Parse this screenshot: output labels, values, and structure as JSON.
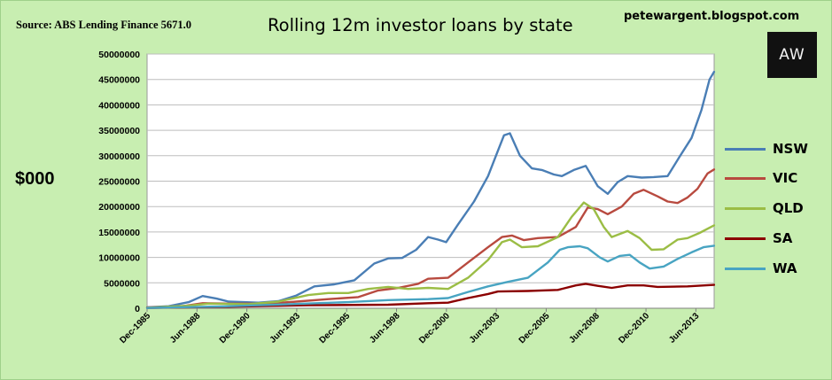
{
  "header": {
    "source": "Source: ABS Lending Finance 5671.0",
    "title": "Rolling 12m investor loans by state",
    "blog": "petewargent.blogspot.com",
    "logo_text": "AW"
  },
  "colors": {
    "background": "#c8eeb1",
    "plot_area": "#ffffff",
    "gridline": "#bdbdbd",
    "NSW": "#4a7eb5",
    "VIC": "#b84a3f",
    "QLD": "#9bbd45",
    "SA": "#8b0000",
    "WA": "#48a4c2"
  },
  "chart_data": {
    "type": "line",
    "title": "Rolling 12m investor loans by state",
    "ylabel": "$000",
    "ylim": [
      0,
      50000000
    ],
    "yticks": [
      0,
      5000000,
      10000000,
      15000000,
      20000000,
      25000000,
      30000000,
      35000000,
      40000000,
      45000000,
      50000000
    ],
    "xlim": [
      1985.917,
      2014.333
    ],
    "x_tick_labels": [
      {
        "label": "Dec-1985",
        "x": 1985.917
      },
      {
        "label": "Jun-1988",
        "x": 1988.417
      },
      {
        "label": "Dec-1990",
        "x": 1990.917
      },
      {
        "label": "Jun-1993",
        "x": 1993.417
      },
      {
        "label": "Dec-1995",
        "x": 1995.917
      },
      {
        "label": "Jun-1998",
        "x": 1998.417
      },
      {
        "label": "Dec-2000",
        "x": 2000.917
      },
      {
        "label": "Jun-2003",
        "x": 2003.417
      },
      {
        "label": "Dec-2005",
        "x": 2005.917
      },
      {
        "label": "Jun-2008",
        "x": 2008.417
      },
      {
        "label": "Dec-2010",
        "x": 2010.917
      },
      {
        "label": "Jun-2013",
        "x": 2013.417
      }
    ],
    "grid": true,
    "legend_position": "right",
    "series": [
      {
        "name": "NSW",
        "points": [
          [
            1985.92,
            200000
          ],
          [
            1987.0,
            400000
          ],
          [
            1988.0,
            1200000
          ],
          [
            1988.7,
            2400000
          ],
          [
            1989.4,
            1900000
          ],
          [
            1990.0,
            1300000
          ],
          [
            1991.5,
            1100000
          ],
          [
            1992.5,
            1400000
          ],
          [
            1993.4,
            2500000
          ],
          [
            1994.3,
            4300000
          ],
          [
            1995.3,
            4700000
          ],
          [
            1996.3,
            5500000
          ],
          [
            1997.3,
            8800000
          ],
          [
            1998.0,
            9800000
          ],
          [
            1998.7,
            9900000
          ],
          [
            1999.4,
            11500000
          ],
          [
            2000.0,
            14000000
          ],
          [
            2000.5,
            13500000
          ],
          [
            2000.9,
            13000000
          ],
          [
            2001.5,
            16500000
          ],
          [
            2002.3,
            21000000
          ],
          [
            2003.0,
            26000000
          ],
          [
            2003.5,
            31000000
          ],
          [
            2003.8,
            34000000
          ],
          [
            2004.1,
            34400000
          ],
          [
            2004.6,
            30000000
          ],
          [
            2005.2,
            27500000
          ],
          [
            2005.7,
            27200000
          ],
          [
            2006.3,
            26300000
          ],
          [
            2006.7,
            26000000
          ],
          [
            2007.3,
            27200000
          ],
          [
            2007.9,
            28000000
          ],
          [
            2008.5,
            24000000
          ],
          [
            2009.0,
            22500000
          ],
          [
            2009.5,
            24800000
          ],
          [
            2010.0,
            26000000
          ],
          [
            2010.7,
            25700000
          ],
          [
            2011.3,
            25800000
          ],
          [
            2012.0,
            26000000
          ],
          [
            2012.6,
            29800000
          ],
          [
            2013.2,
            33500000
          ],
          [
            2013.7,
            39000000
          ],
          [
            2014.1,
            45000000
          ],
          [
            2014.33,
            46500000
          ]
        ]
      },
      {
        "name": "VIC",
        "points": [
          [
            1985.92,
            150000
          ],
          [
            1987.5,
            300000
          ],
          [
            1988.7,
            1000000
          ],
          [
            1990.0,
            900000
          ],
          [
            1992.0,
            900000
          ],
          [
            1993.4,
            1300000
          ],
          [
            1995.0,
            1800000
          ],
          [
            1996.5,
            2200000
          ],
          [
            1997.5,
            3500000
          ],
          [
            1998.5,
            4000000
          ],
          [
            1999.5,
            4800000
          ],
          [
            2000.0,
            5800000
          ],
          [
            2001.0,
            6000000
          ],
          [
            2002.0,
            9000000
          ],
          [
            2003.0,
            12000000
          ],
          [
            2003.7,
            14000000
          ],
          [
            2004.2,
            14300000
          ],
          [
            2004.8,
            13400000
          ],
          [
            2005.5,
            13800000
          ],
          [
            2006.5,
            14000000
          ],
          [
            2007.4,
            16000000
          ],
          [
            2008.0,
            19800000
          ],
          [
            2008.5,
            19500000
          ],
          [
            2009.0,
            18500000
          ],
          [
            2009.7,
            20000000
          ],
          [
            2010.3,
            22500000
          ],
          [
            2010.8,
            23300000
          ],
          [
            2011.5,
            22000000
          ],
          [
            2012.0,
            21000000
          ],
          [
            2012.5,
            20700000
          ],
          [
            2013.0,
            21800000
          ],
          [
            2013.5,
            23500000
          ],
          [
            2014.0,
            26500000
          ],
          [
            2014.33,
            27300000
          ]
        ]
      },
      {
        "name": "QLD",
        "points": [
          [
            1985.92,
            100000
          ],
          [
            1988.0,
            500000
          ],
          [
            1989.0,
            900000
          ],
          [
            1991.0,
            800000
          ],
          [
            1992.5,
            1300000
          ],
          [
            1994.0,
            2600000
          ],
          [
            1995.0,
            3000000
          ],
          [
            1996.0,
            3000000
          ],
          [
            1997.0,
            3800000
          ],
          [
            1998.0,
            4200000
          ],
          [
            1999.0,
            3800000
          ],
          [
            2000.0,
            4000000
          ],
          [
            2001.0,
            3800000
          ],
          [
            2002.0,
            6000000
          ],
          [
            2003.0,
            9500000
          ],
          [
            2003.7,
            13000000
          ],
          [
            2004.1,
            13500000
          ],
          [
            2004.7,
            12000000
          ],
          [
            2005.5,
            12200000
          ],
          [
            2006.5,
            14000000
          ],
          [
            2007.2,
            18000000
          ],
          [
            2007.8,
            20800000
          ],
          [
            2008.3,
            19500000
          ],
          [
            2008.8,
            16000000
          ],
          [
            2009.2,
            14000000
          ],
          [
            2010.0,
            15200000
          ],
          [
            2010.6,
            13800000
          ],
          [
            2011.2,
            11500000
          ],
          [
            2011.8,
            11600000
          ],
          [
            2012.5,
            13500000
          ],
          [
            2013.0,
            13800000
          ],
          [
            2013.6,
            14800000
          ],
          [
            2014.33,
            16300000
          ]
        ]
      },
      {
        "name": "SA",
        "points": [
          [
            1985.92,
            50000
          ],
          [
            1990.0,
            300000
          ],
          [
            1994.0,
            600000
          ],
          [
            1998.0,
            700000
          ],
          [
            2000.0,
            1000000
          ],
          [
            2001.0,
            1100000
          ],
          [
            2002.0,
            2000000
          ],
          [
            2003.0,
            2800000
          ],
          [
            2003.5,
            3300000
          ],
          [
            2005.0,
            3400000
          ],
          [
            2006.5,
            3600000
          ],
          [
            2007.4,
            4500000
          ],
          [
            2007.9,
            4800000
          ],
          [
            2008.5,
            4400000
          ],
          [
            2009.2,
            4000000
          ],
          [
            2010.0,
            4500000
          ],
          [
            2010.8,
            4500000
          ],
          [
            2011.5,
            4200000
          ],
          [
            2013.0,
            4300000
          ],
          [
            2014.33,
            4600000
          ]
        ]
      },
      {
        "name": "WA",
        "points": [
          [
            1985.92,
            50000
          ],
          [
            1990.0,
            400000
          ],
          [
            1993.0,
            800000
          ],
          [
            1996.0,
            1200000
          ],
          [
            1998.0,
            1600000
          ],
          [
            2000.0,
            1800000
          ],
          [
            2001.0,
            2000000
          ],
          [
            2002.0,
            3200000
          ],
          [
            2003.0,
            4300000
          ],
          [
            2004.0,
            5200000
          ],
          [
            2005.0,
            6000000
          ],
          [
            2006.0,
            9000000
          ],
          [
            2006.6,
            11500000
          ],
          [
            2007.0,
            12000000
          ],
          [
            2007.6,
            12200000
          ],
          [
            2008.0,
            11800000
          ],
          [
            2008.6,
            10000000
          ],
          [
            2009.0,
            9200000
          ],
          [
            2009.6,
            10300000
          ],
          [
            2010.1,
            10500000
          ],
          [
            2010.6,
            9000000
          ],
          [
            2011.1,
            7800000
          ],
          [
            2011.8,
            8200000
          ],
          [
            2012.5,
            9700000
          ],
          [
            2013.2,
            11000000
          ],
          [
            2013.8,
            12000000
          ],
          [
            2014.33,
            12300000
          ]
        ]
      }
    ]
  }
}
